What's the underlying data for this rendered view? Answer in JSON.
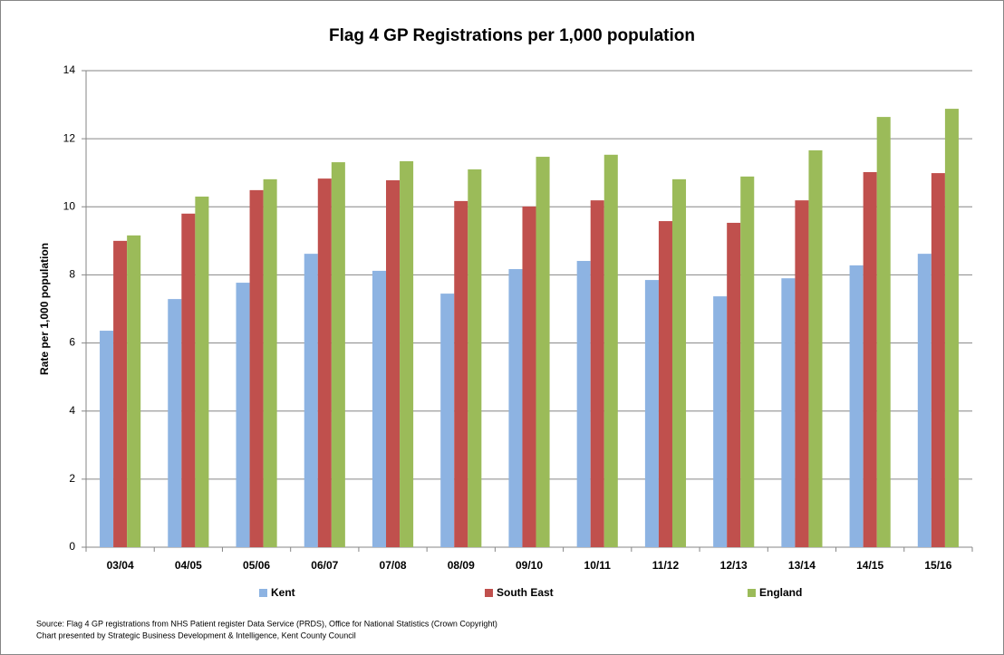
{
  "chart_data": {
    "type": "bar",
    "title": "Flag 4 GP Registrations per 1,000 population",
    "y_label": "Rate per 1,000 population",
    "categories": [
      "03/04",
      "04/05",
      "05/06",
      "06/07",
      "07/08",
      "08/09",
      "09/10",
      "10/11",
      "11/12",
      "12/13",
      "13/14",
      "14/15",
      "15/16"
    ],
    "series": [
      {
        "name": "Kent",
        "color": "#8db3e2",
        "values": [
          6.36,
          7.29,
          7.77,
          8.62,
          8.12,
          7.45,
          8.17,
          8.41,
          7.85,
          7.37,
          7.9,
          8.28,
          8.62
        ]
      },
      {
        "name": "South East",
        "color": "#c0504d",
        "values": [
          9.0,
          9.8,
          10.49,
          10.83,
          10.78,
          10.17,
          10.01,
          10.19,
          9.58,
          9.53,
          10.19,
          11.02,
          10.99
        ]
      },
      {
        "name": "England",
        "color": "#9bbb59",
        "values": [
          9.16,
          10.3,
          10.81,
          11.31,
          11.34,
          11.1,
          11.47,
          11.53,
          10.81,
          10.89,
          11.66,
          12.64,
          12.88
        ]
      }
    ],
    "ylim": [
      0,
      14
    ],
    "yticks": [
      0,
      2,
      4,
      6,
      8,
      10,
      12,
      14
    ],
    "grid": true,
    "legend": "bottom",
    "notes": [
      "Source: Flag 4 GP registrations from NHS Patient register Data Service (PRDS), Office for National Statistics (Crown Copyright)",
      "Chart presented by Strategic Business Development & Intelligence, Kent County Council"
    ]
  }
}
